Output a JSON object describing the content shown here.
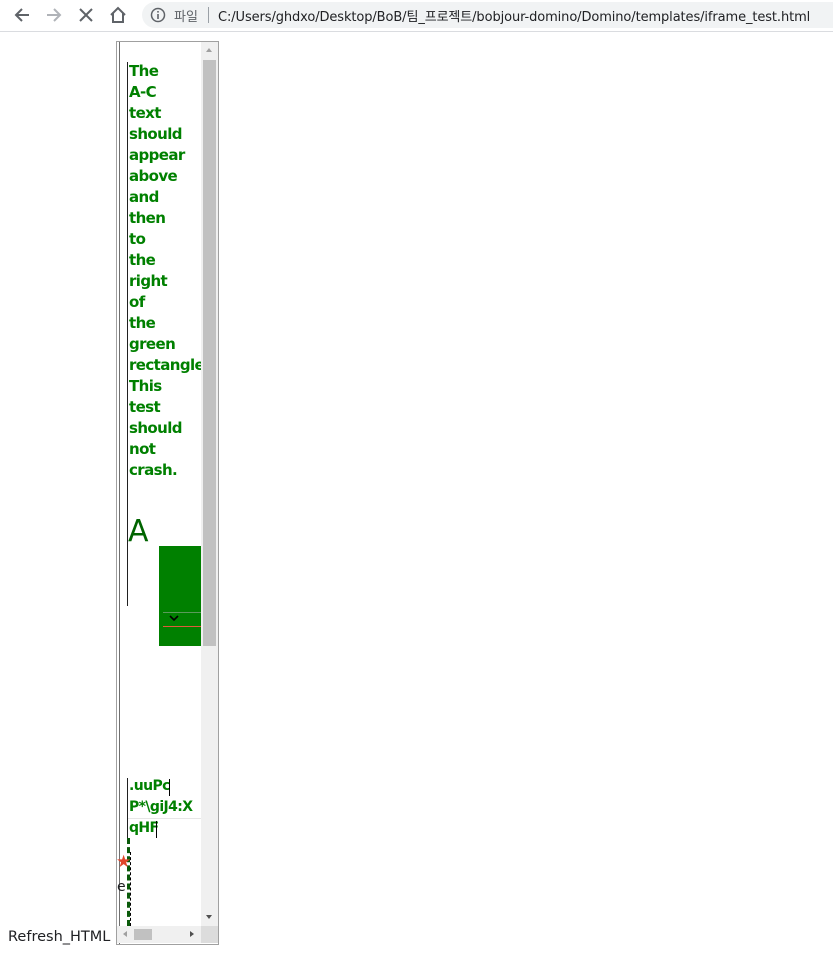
{
  "browser": {
    "scheme_label": "파일",
    "url": "C:/Users/ghdxo/Desktop/BoB/팀_프로젝트/bobjour-domino/Domino/templates/iframe_test.html",
    "icons": {
      "back": "back-arrow-icon",
      "forward": "forward-arrow-icon",
      "stop": "stop-loading-icon",
      "home": "home-icon",
      "info": "info-icon"
    }
  },
  "page": {
    "test_text": "The A-C text should appear above and then to the right of the green rectangle. This test should not crash.",
    "big_letter": "A",
    "editable_lines": [
      ".uuPc",
      "P*\\giJ4:X",
      "qHF"
    ],
    "star_symbol": "★",
    "small_char": "e",
    "refresh_label": "Refresh_HTML"
  },
  "colors": {
    "text_green": "#008000",
    "rect_green": "#008000",
    "star_red": "#e0442a"
  }
}
